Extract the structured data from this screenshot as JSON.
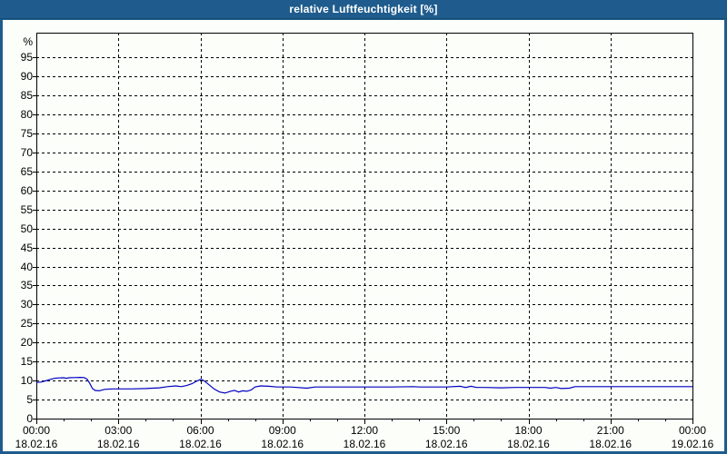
{
  "window": {
    "title": "relative Luftfeuchtigkeit [%]"
  },
  "colors": {
    "titlebar": "#1f5c8d",
    "frame": "#1f5c8d",
    "title_text": "#ffffff",
    "background": "#fcfefa",
    "grid": "#000000",
    "axis": "#000000",
    "label_text": "#000000",
    "line": "#0000c0"
  },
  "chart_data": {
    "type": "line",
    "title": "relative Luftfeuchtigkeit [%]",
    "ylabel": "%",
    "ylim": [
      0,
      101.5
    ],
    "yticks": [
      0,
      5,
      10,
      15,
      20,
      25,
      30,
      35,
      40,
      45,
      50,
      55,
      60,
      65,
      70,
      75,
      80,
      85,
      90,
      95
    ],
    "xlim_hours": [
      0,
      24
    ],
    "grid": "dashed",
    "minor_tick_every_hour": true,
    "xticks": [
      {
        "hour": 0,
        "time": "00:00",
        "date": "18.02.16"
      },
      {
        "hour": 3,
        "time": "03:00",
        "date": "18.02.16"
      },
      {
        "hour": 6,
        "time": "06:00",
        "date": "18.02.16"
      },
      {
        "hour": 9,
        "time": "09:00",
        "date": "18.02.16"
      },
      {
        "hour": 12,
        "time": "12:00",
        "date": "18.02.16"
      },
      {
        "hour": 15,
        "time": "15:00",
        "date": "18.02.16"
      },
      {
        "hour": 18,
        "time": "18:00",
        "date": "18.02.16"
      },
      {
        "hour": 21,
        "time": "21:00",
        "date": "18.02.16"
      },
      {
        "hour": 24,
        "time": "00:00",
        "date": "19.02.16"
      }
    ],
    "series": [
      {
        "points": [
          [
            0,
            9.5
          ],
          [
            0.17,
            9.6
          ],
          [
            0.33,
            9.9
          ],
          [
            0.5,
            10.3
          ],
          [
            0.67,
            10.6
          ],
          [
            0.83,
            10.7
          ],
          [
            1.0,
            10.75
          ],
          [
            1.1,
            10.6
          ],
          [
            1.2,
            10.75
          ],
          [
            1.4,
            10.8
          ],
          [
            1.6,
            10.85
          ],
          [
            1.75,
            10.8
          ],
          [
            1.85,
            10.4
          ],
          [
            1.95,
            9.3
          ],
          [
            2.05,
            7.9
          ],
          [
            2.15,
            7.4
          ],
          [
            2.3,
            7.3
          ],
          [
            2.5,
            7.7
          ],
          [
            2.8,
            7.8
          ],
          [
            3.5,
            7.8
          ],
          [
            4.0,
            7.9
          ],
          [
            4.5,
            8.1
          ],
          [
            4.8,
            8.4
          ],
          [
            5.1,
            8.6
          ],
          [
            5.3,
            8.4
          ],
          [
            5.5,
            8.7
          ],
          [
            5.7,
            9.2
          ],
          [
            5.85,
            9.8
          ],
          [
            6.0,
            10.3
          ],
          [
            6.1,
            10.1
          ],
          [
            6.3,
            9.0
          ],
          [
            6.5,
            7.8
          ],
          [
            6.7,
            7.0
          ],
          [
            6.9,
            6.7
          ],
          [
            7.1,
            7.2
          ],
          [
            7.25,
            7.4
          ],
          [
            7.4,
            7.0
          ],
          [
            7.55,
            7.3
          ],
          [
            7.7,
            7.2
          ],
          [
            7.85,
            7.5
          ],
          [
            8.0,
            8.3
          ],
          [
            8.2,
            8.6
          ],
          [
            8.5,
            8.5
          ],
          [
            8.8,
            8.3
          ],
          [
            9.3,
            8.3
          ],
          [
            9.9,
            8.0
          ],
          [
            10.2,
            8.3
          ],
          [
            11.0,
            8.3
          ],
          [
            12.0,
            8.3
          ],
          [
            13.0,
            8.3
          ],
          [
            13.8,
            8.4
          ],
          [
            14.0,
            8.3
          ],
          [
            15.0,
            8.3
          ],
          [
            15.5,
            8.5
          ],
          [
            15.7,
            8.2
          ],
          [
            15.9,
            8.5
          ],
          [
            16.1,
            8.2
          ],
          [
            16.4,
            8.2
          ],
          [
            17.0,
            8.1
          ],
          [
            17.5,
            8.2
          ],
          [
            18.0,
            8.2
          ],
          [
            18.6,
            8.2
          ],
          [
            18.8,
            8.0
          ],
          [
            19.0,
            8.2
          ],
          [
            19.2,
            7.9
          ],
          [
            19.5,
            8.0
          ],
          [
            19.7,
            8.4
          ],
          [
            20.5,
            8.4
          ],
          [
            21.5,
            8.4
          ],
          [
            22.5,
            8.4
          ],
          [
            23.5,
            8.4
          ],
          [
            24,
            8.4
          ]
        ]
      }
    ]
  }
}
